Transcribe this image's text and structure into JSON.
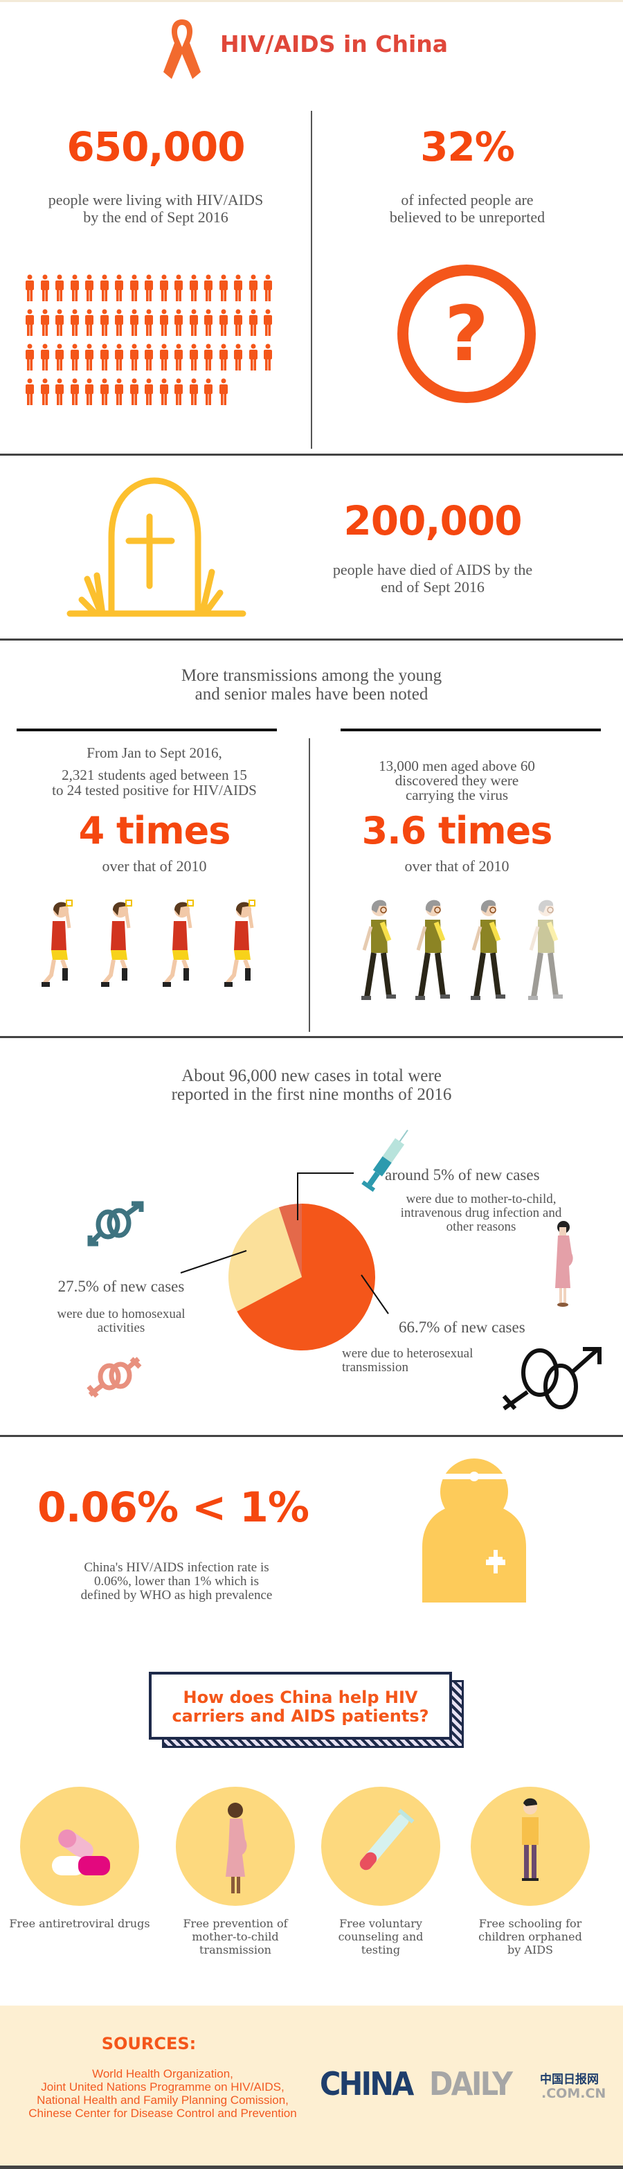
{
  "header": {
    "title": "HIV/AIDS in China",
    "icon": "awareness-ribbon-icon"
  },
  "living": {
    "number": "650,000",
    "caption_1": "people were living with HIV/AIDS",
    "caption_2": "by the end of Sept 2016"
  },
  "unreported": {
    "number": "32%",
    "caption_1": "of infected people are",
    "caption_2": "believed to be unreported",
    "icon": "question-circle-icon"
  },
  "deaths": {
    "number": "200,000",
    "caption_1": "people have died of AIDS by the",
    "caption_2": "end of Sept 2016",
    "icon": "tombstone-icon"
  },
  "transmissions": {
    "heading_1": "More transmissions among the young",
    "heading_2": "and senior males have been noted",
    "young": {
      "line_1": "From Jan to Sept 2016,",
      "line_2": "2,321 students aged between 15",
      "line_3": "to 24 tested positive for HIV/AIDS",
      "number": "4 times",
      "caption": "over that of 2010"
    },
    "senior": {
      "line_1": "13,000 men aged above 60",
      "line_2": "discovered they were",
      "line_3": "carrying the virus",
      "number": "3.6 times",
      "caption": "over that of 2010"
    }
  },
  "new_cases": {
    "heading_1": "About 96,000 new cases in total were",
    "heading_2": "reported in the first nine months of 2016",
    "other": {
      "label": "around 5% of new cases",
      "desc_1": "were due to mother-to-child,",
      "desc_2": "intravenous drug infection and",
      "desc_3": "other reasons"
    },
    "homo": {
      "label": "27.5% of new cases",
      "desc_1": "were due to homosexual",
      "desc_2": "activities"
    },
    "hetero": {
      "label": "66.7% of new cases",
      "desc_1": "were due to heterosexual",
      "desc_2": "transmission"
    }
  },
  "chart_data": {
    "type": "pie",
    "slices": [
      {
        "label": "66.7% of new cases",
        "value": 66.7,
        "color": "#F4561A"
      },
      {
        "label": "27.5% of new cases",
        "value": 27.5,
        "color": "#FBE09A"
      },
      {
        "label": "around 5% of new cases",
        "value": 5,
        "color": "#E4694A"
      }
    ]
  },
  "prevalence": {
    "number": "0.06% < 1%",
    "caption_1": "China's HIV/AIDS infection rate is",
    "caption_2": "0.06%, lower than 1% which is",
    "caption_3": "defined by WHO as high prevalence",
    "icon": "doctor-icon"
  },
  "help": {
    "title_1": "How does China help HIV",
    "title_2": "carriers and AIDS patients?",
    "items": [
      {
        "icon": "pills-icon",
        "l1": "Free antiretroviral drugs",
        "l2": "",
        "l3": ""
      },
      {
        "icon": "pregnant-woman-icon",
        "l1": "Free prevention of",
        "l2": "mother-to-child",
        "l3": "transmission"
      },
      {
        "icon": "test-tube-icon",
        "l1": "Free voluntary",
        "l2": "counseling and",
        "l3": "testing"
      },
      {
        "icon": "child-icon",
        "l1": "Free schooling for",
        "l2": "children orphaned",
        "l3": "by AIDS"
      }
    ]
  },
  "sources": {
    "title": "SOURCES:",
    "lines": [
      "World Health Organization,",
      "Joint United Nations Programme on HIV/AIDS,",
      "National Health and Family Planning Comission,",
      "Chinese Center for Disease Control and Prevention"
    ]
  },
  "logo": {
    "china": "CHINA",
    "daily": "DAILY",
    "chinese": "中国日报网",
    "domain": ".COM.CN"
  },
  "colors": {
    "accent": "#F5470F",
    "yellow": "#FDCB5A",
    "navy": "#1E3E6C",
    "beige": "#FDEFD2"
  }
}
